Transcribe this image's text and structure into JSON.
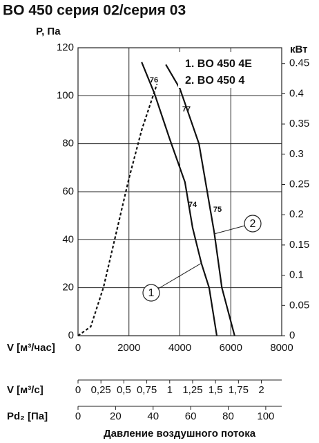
{
  "chart_data": [
    {
      "type": "line",
      "title": "BO 450 серия 02/серия 03",
      "ylabel": "P, Па",
      "y2label": "кВт",
      "xlabel": "V [м³/час]",
      "xlim": [
        0,
        8000
      ],
      "xticks": [
        0,
        2000,
        4000,
        6000,
        8000
      ],
      "ylim": [
        0,
        120
      ],
      "yticks": [
        0,
        20,
        40,
        60,
        80,
        100,
        120
      ],
      "y2lim": [
        0,
        0.476
      ],
      "y2ticks": [
        0,
        0.05,
        0.1,
        0.15,
        0.2,
        0.25,
        0.3,
        0.35,
        0.4,
        0.45
      ],
      "grid": true,
      "series": [
        {
          "name": "1. BO 450 4E",
          "color": "#111111",
          "x": [
            2500,
            3000,
            3600,
            4200,
            4500,
            4850,
            5150,
            5450
          ],
          "values": [
            114,
            101,
            82,
            64,
            45,
            30,
            20,
            0
          ]
        },
        {
          "name": "2. BO 450 4",
          "color": "#111111",
          "x": [
            3450,
            4000,
            4750,
            5350,
            5650,
            6150
          ],
          "values": [
            113,
            103,
            80,
            43,
            20,
            0
          ]
        },
        {
          "color": "#111111",
          "axis": "y2",
          "dashed": true,
          "x": [
            0,
            500,
            1000,
            1500,
            2000,
            2500,
            3100
          ],
          "values": [
            0,
            0.015,
            0.08,
            0.17,
            0.26,
            0.34,
            0.416
          ]
        }
      ],
      "annotations": [
        "76",
        "77",
        "74",
        "75"
      ],
      "callouts": [
        "1",
        "2"
      ]
    },
    {
      "type": "axis",
      "xlabel": "V [м³/с]",
      "xlim": [
        0,
        2.222
      ],
      "xticks": [
        0,
        {
          "value": 0.25,
          "label": "0,25"
        },
        {
          "value": 0.5,
          "label": "0,5"
        },
        {
          "value": 0.75,
          "label": "0,75"
        },
        1,
        {
          "value": 1.25,
          "label": "1,25"
        },
        {
          "value": 1.5,
          "label": "1,5"
        },
        {
          "value": 1.75,
          "label": "1,75"
        },
        2
      ]
    },
    {
      "type": "axis",
      "xlabel": "Pd₂ [Па]",
      "xlim": [
        0,
        108.5
      ],
      "xticks": [
        0,
        20,
        40,
        60,
        80,
        100
      ],
      "caption": "Давление воздушного потока"
    }
  ]
}
